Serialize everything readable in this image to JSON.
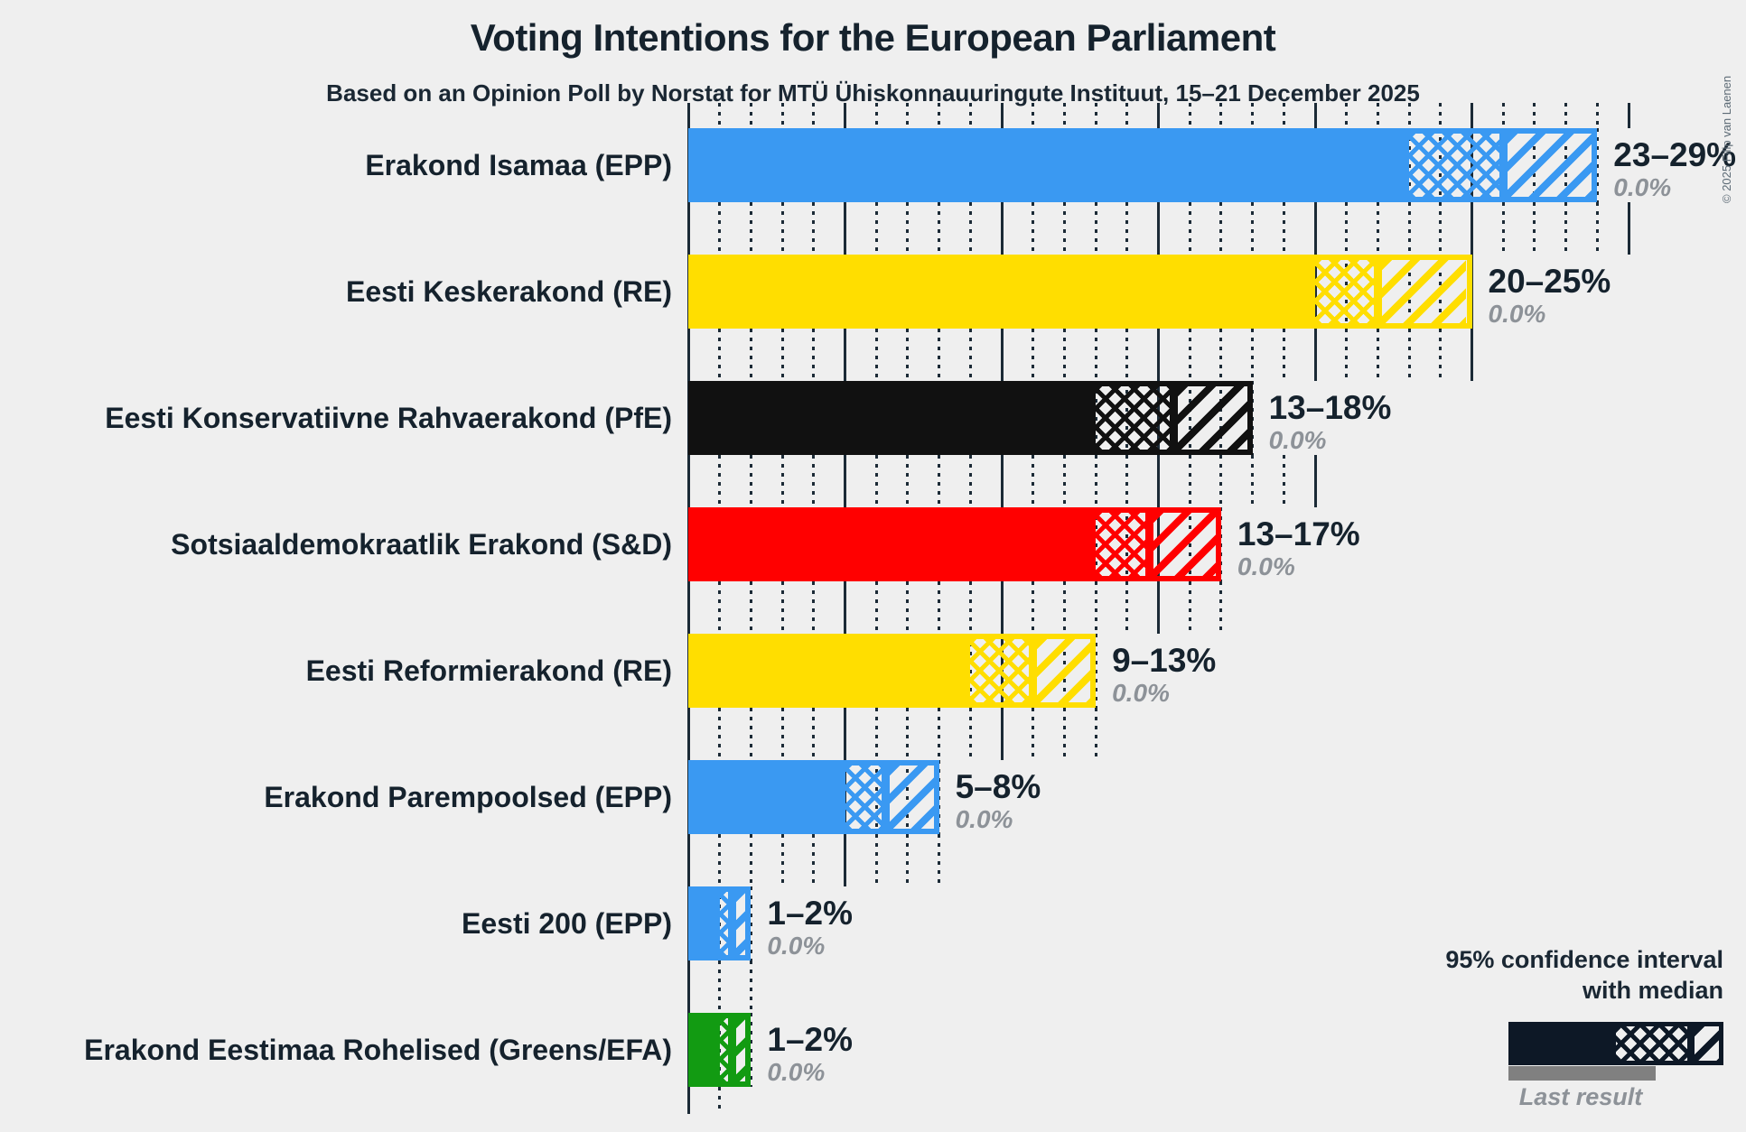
{
  "title": "Voting Intentions for the European Parliament",
  "subtitle": "Based on an Opinion Poll by Norstat for MTÜ Ühiskonnauuringute Instituut, 15–21 December 2025",
  "copyright": "© 2025 Filip van Laenen",
  "colors": {
    "background": "#efefef",
    "text": "#15222d",
    "muted": "#8d9298",
    "gridline": "#1b2a36",
    "legend_bar": "#0d1826",
    "last_result_bar": "#808080"
  },
  "legend": {
    "ci_label_line1": "95% confidence interval",
    "ci_label_line2": "with median",
    "last_result_label": "Last result"
  },
  "chart_data": {
    "type": "bar",
    "orientation": "horizontal",
    "unit": "%",
    "title": "Voting Intentions for the European Parliament",
    "subtitle": "Based on an Opinion Poll by Norstat for MTÜ Ühiskonnauuringute Instituut, 15–21 December 2025",
    "x_axis": {
      "min": 0,
      "max": 30,
      "solid_gridline_step_pct": 5,
      "dotted_gridline_step_pct": 1,
      "tick_labels_visible": false
    },
    "bar_style": "solid to CI low, crosshatch from CI low to median, diagonal hatch from median to CI high",
    "grid_extents_pct": [
      30,
      30,
      25,
      20,
      17,
      13,
      8,
      2,
      1.3
    ],
    "parties": [
      {
        "label": "Erakond Isamaa (EPP)",
        "ci_low": 23,
        "median": 26,
        "ci_high": 29,
        "range_label": "23–29%",
        "last_result": 0.0,
        "last_result_label": "0.0%",
        "color": "#3a99f2"
      },
      {
        "label": "Eesti Keskerakond (RE)",
        "ci_low": 20,
        "median": 22,
        "ci_high": 25,
        "range_label": "20–25%",
        "last_result": 0.0,
        "last_result_label": "0.0%",
        "color": "#ffde00"
      },
      {
        "label": "Eesti Konservatiivne Rahvaerakond (PfE)",
        "ci_low": 13,
        "median": 15.5,
        "ci_high": 18,
        "range_label": "13–18%",
        "last_result": 0.0,
        "last_result_label": "0.0%",
        "color": "#111111"
      },
      {
        "label": "Sotsiaaldemokraatlik Erakond (S&D)",
        "ci_low": 13,
        "median": 14.7,
        "ci_high": 17,
        "range_label": "13–17%",
        "last_result": 0.0,
        "last_result_label": "0.0%",
        "color": "#ff0000"
      },
      {
        "label": "Eesti Reformierakond (RE)",
        "ci_low": 9,
        "median": 11,
        "ci_high": 13,
        "range_label": "9–13%",
        "last_result": 0.0,
        "last_result_label": "0.0%",
        "color": "#ffde00"
      },
      {
        "label": "Erakond Parempoolsed (EPP)",
        "ci_low": 5,
        "median": 6.3,
        "ci_high": 8,
        "range_label": "5–8%",
        "last_result": 0.0,
        "last_result_label": "0.0%",
        "color": "#3a99f2"
      },
      {
        "label": "Eesti 200 (EPP)",
        "ci_low": 1,
        "median": 1.4,
        "ci_high": 2,
        "range_label": "1–2%",
        "last_result": 0.0,
        "last_result_label": "0.0%",
        "color": "#3a99f2"
      },
      {
        "label": "Erakond Eestimaa Rohelised (Greens/EFA)",
        "ci_low": 1,
        "median": 1.4,
        "ci_high": 2,
        "range_label": "1–2%",
        "last_result": 0.0,
        "last_result_label": "0.0%",
        "color": "#129b12"
      }
    ],
    "legend_sample": {
      "solid_fraction": 0.5,
      "diagonal_start_fraction": 0.85
    }
  }
}
